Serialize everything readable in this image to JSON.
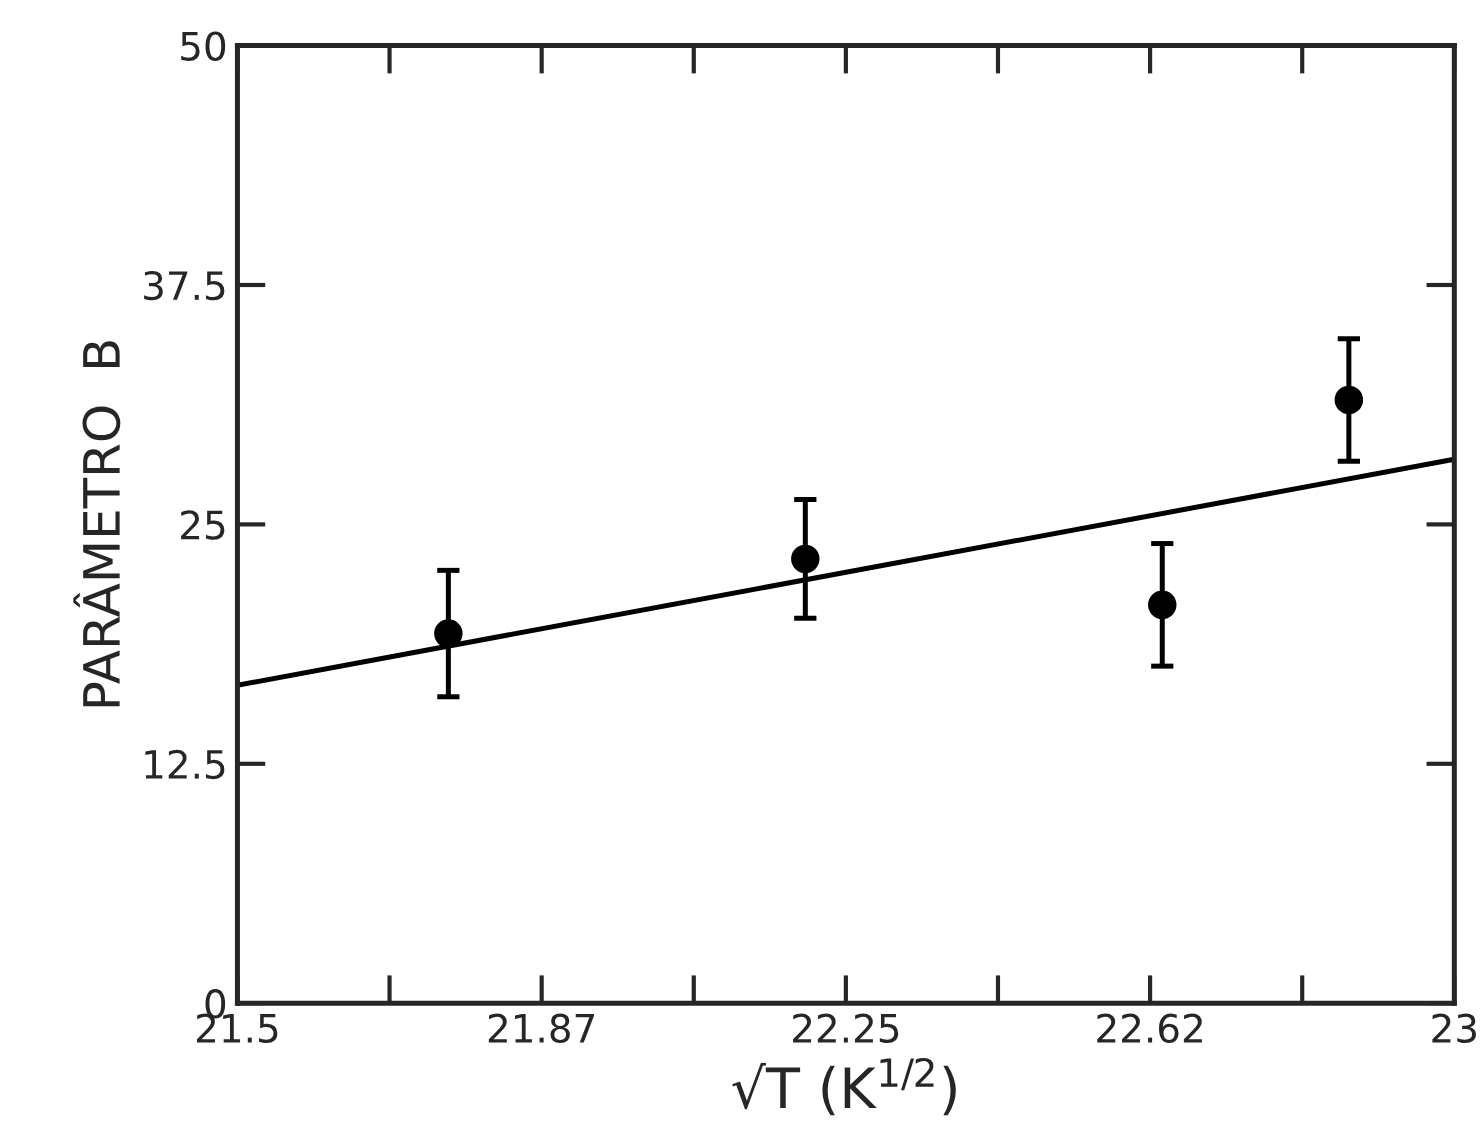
{
  "chart_data": {
    "type": "scatter",
    "xlabel": "√T (K$^{1/2}$)",
    "ylabel": "PARÂMETRO  B",
    "xlim": [
      21.5,
      23
    ],
    "ylim": [
      0,
      50
    ],
    "xticks": [
      21.5,
      {
        "value": 21.6875,
        "label": null
      },
      {
        "value": 21.875,
        "label": "21.87"
      },
      {
        "value": 22.0625,
        "label": null
      },
      22.25,
      {
        "value": 22.4375,
        "label": null
      },
      {
        "value": 22.625,
        "label": "22.62"
      },
      {
        "value": 22.8125,
        "label": null
      },
      23
    ],
    "yticks": [
      0,
      12.5,
      37.5,
      25,
      50
    ],
    "grid": false,
    "legend": false,
    "series": [
      {
        "color": "#000000",
        "marker": "circle",
        "x": [
          21.76,
          22.2,
          22.64,
          22.87
        ],
        "values": [
          19.3,
          23.2,
          20.8,
          31.5
        ],
        "errors": [
          3.3,
          3.1,
          3.2,
          3.2
        ]
      },
      {
        "type": "line",
        "color": "#000000",
        "marker": "none",
        "line_style": "solid",
        "x": [
          21.5,
          23
        ],
        "values": [
          16.6,
          28.4
        ]
      }
    ]
  }
}
